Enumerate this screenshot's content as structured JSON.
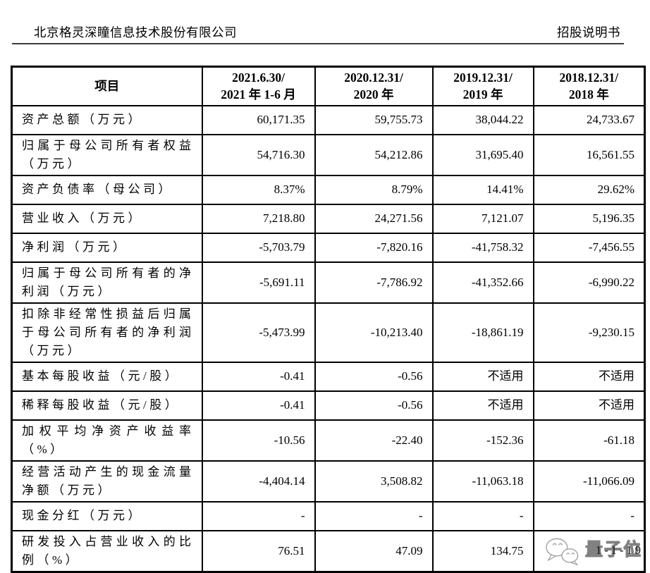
{
  "header": {
    "company_name": "北京格灵深瞳信息技术股份有限公司",
    "doc_label": "招股说明书"
  },
  "table": {
    "header": {
      "item_col": "项目",
      "period_cols": [
        {
          "line1": "2021.6.30/",
          "line2": "2021 年 1-6 月"
        },
        {
          "line1": "2020.12.31/",
          "line2": "2020 年"
        },
        {
          "line1": "2019.12.31/",
          "line2": "2019 年"
        },
        {
          "line1": "2018.12.31/",
          "line2": "2018 年"
        }
      ]
    },
    "rows": [
      {
        "label": "资产总额（万元）",
        "values": [
          "60,171.35",
          "59,755.73",
          "38,044.22",
          "24,733.67"
        ]
      },
      {
        "label": "归属于母公司所有者权益（万元）",
        "values": [
          "54,716.30",
          "54,212.86",
          "31,695.40",
          "16,561.55"
        ]
      },
      {
        "label": "资产负债率（母公司）",
        "values": [
          "8.37%",
          "8.79%",
          "14.41%",
          "29.62%"
        ]
      },
      {
        "label": "营业收入（万元）",
        "values": [
          "7,218.80",
          "24,271.56",
          "7,121.07",
          "5,196.35"
        ]
      },
      {
        "label": "净利润（万元）",
        "values": [
          "-5,703.79",
          "-7,820.16",
          "-41,758.32",
          "-7,456.55"
        ]
      },
      {
        "label": "归属于母公司所有者的净利润（万元）",
        "values": [
          "-5,691.11",
          "-7,786.92",
          "-41,352.66",
          "-6,990.22"
        ]
      },
      {
        "label": "扣除非经常性损益后归属于母公司所有者的净利润（万元）",
        "values": [
          "-5,473.99",
          "-10,213.40",
          "-18,861.19",
          "-9,230.15"
        ]
      },
      {
        "label": "基本每股收益（元/股）",
        "values": [
          "-0.41",
          "-0.56",
          "不适用",
          "不适用"
        ]
      },
      {
        "label": "稀释每股收益（元/股）",
        "values": [
          "-0.41",
          "-0.56",
          "不适用",
          "不适用"
        ]
      },
      {
        "label": "加权平均净资产收益率（%）",
        "values": [
          "-10.56",
          "-22.40",
          "-152.36",
          "-61.18"
        ]
      },
      {
        "label": "经营活动产生的现金流量净额（万元）",
        "values": [
          "-4,404.14",
          "3,508.82",
          "-11,063.18",
          "-11,066.09"
        ]
      },
      {
        "label": "现金分红（万元）",
        "values": [
          "-",
          "-",
          "-",
          "-"
        ]
      },
      {
        "label": "研发投入占营业收入的比例（%）",
        "values": [
          "76.51",
          "47.09",
          "134.75",
          ""
        ]
      }
    ]
  },
  "watermark": {
    "row": 12,
    "col": 3,
    "icon": "wechat-icon",
    "text": "量子位",
    "page_number": "1-1-19",
    "gray": "#a3a3a3"
  },
  "colors": {
    "text": "#000000",
    "border": "#000000",
    "header_rule": "#3d3d3d"
  }
}
